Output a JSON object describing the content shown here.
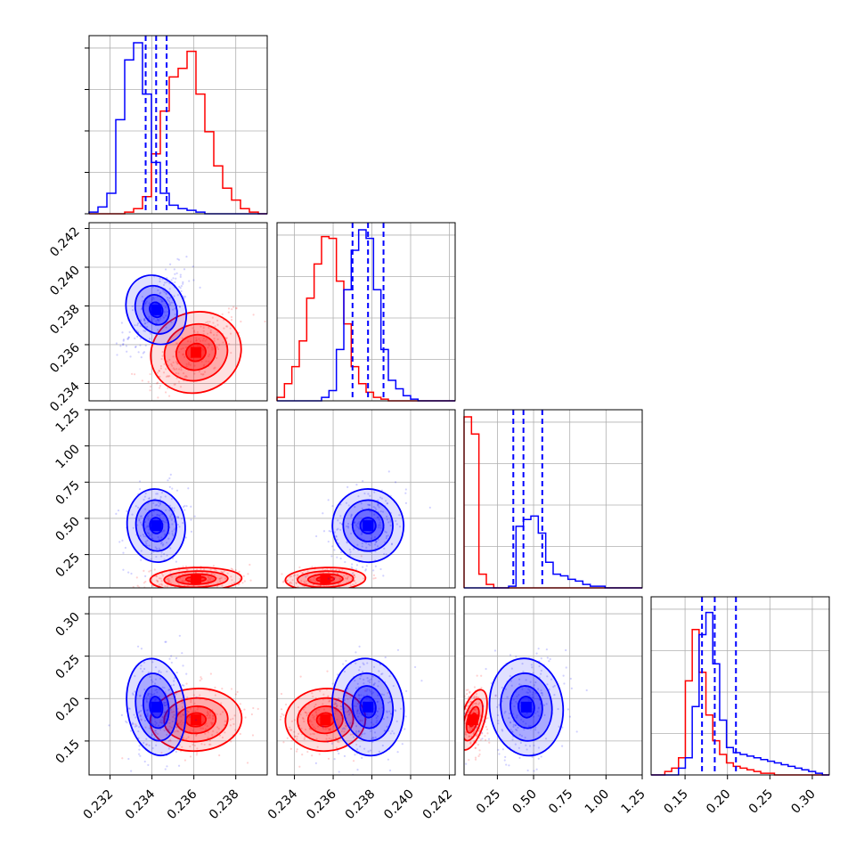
{
  "colors": {
    "red": "#ff0000",
    "blue": "#0000ff",
    "grid": "#b0b0b0"
  },
  "chart_data": {
    "type": "scatter",
    "layout": "corner-plot-4x4",
    "grid": true,
    "series": [
      {
        "color": "#ff0000",
        "mean": [
          0.2361,
          0.2356,
          0.08,
          0.175
        ],
        "std": [
          0.00095,
          0.0009,
          0.035,
          0.016
        ]
      },
      {
        "color": "#0000ff",
        "mean": [
          0.2342,
          0.2378,
          0.45,
          0.19
        ],
        "std": [
          0.0006,
          0.0008,
          0.11,
          0.025
        ]
      }
    ],
    "parameters": [
      {
        "range": [
          0.231,
          0.2395
        ],
        "ticks": [
          "0.232",
          "0.234",
          "0.236",
          "0.238"
        ],
        "tick_values": [
          0.232,
          0.234,
          0.236,
          0.238
        ]
      },
      {
        "range": [
          0.2331,
          0.2423
        ],
        "ticks": [
          "0.234",
          "0.236",
          "0.238",
          "0.240",
          "0.242"
        ],
        "tick_values": [
          0.234,
          0.236,
          0.238,
          0.24,
          0.242
        ]
      },
      {
        "range": [
          0.02,
          1.25
        ],
        "ticks": [
          "0.25",
          "0.50",
          "0.75",
          "1.00",
          "1.25"
        ],
        "tick_values": [
          0.25,
          0.5,
          0.75,
          1.0,
          1.25
        ]
      },
      {
        "range": [
          0.11,
          0.32
        ],
        "ticks": [
          "0.15",
          "0.20",
          "0.25",
          "0.30"
        ],
        "tick_values": [
          0.15,
          0.2,
          0.25,
          0.3
        ]
      }
    ],
    "blue_quantiles": [
      [
        0.2337,
        0.2342,
        0.2347
      ],
      [
        0.237,
        0.2378,
        0.2386
      ],
      [
        0.36,
        0.43,
        0.56
      ],
      [
        0.17,
        0.185,
        0.21
      ]
    ],
    "diag_hist": [
      {
        "bins": [
          0.231,
          0.2395,
          20
        ],
        "red": [
          0,
          0,
          0,
          0,
          0.01,
          0.03,
          0.1,
          0.35,
          0.6,
          0.8,
          0.85,
          0.95,
          0.7,
          0.48,
          0.28,
          0.15,
          0.08,
          0.03,
          0.01,
          0
        ],
        "blue": [
          0.01,
          0.04,
          0.12,
          0.55,
          0.9,
          1.0,
          0.7,
          0.3,
          0.12,
          0.05,
          0.03,
          0.02,
          0.01,
          0,
          0,
          0,
          0,
          0,
          0,
          0
        ]
      },
      {
        "bins": [
          0.2331,
          0.2423,
          24
        ],
        "red": [
          0.02,
          0.1,
          0.2,
          0.35,
          0.6,
          0.8,
          0.96,
          0.95,
          0.7,
          0.45,
          0.2,
          0.1,
          0.05,
          0.02,
          0.01,
          0,
          0,
          0,
          0,
          0,
          0,
          0,
          0,
          0
        ],
        "blue": [
          0,
          0,
          0,
          0,
          0,
          0,
          0.02,
          0.06,
          0.3,
          0.65,
          0.88,
          1.0,
          0.95,
          0.65,
          0.3,
          0.12,
          0.07,
          0.03,
          0.01,
          0,
          0,
          0,
          0,
          0
        ]
      },
      {
        "bins": [
          0.02,
          1.25,
          24
        ],
        "red": [
          1.0,
          0.9,
          0.08,
          0.02,
          0,
          0,
          0,
          0,
          0,
          0,
          0,
          0,
          0,
          0,
          0,
          0,
          0,
          0,
          0,
          0,
          0,
          0,
          0,
          0
        ],
        "blue": [
          0,
          0,
          0,
          0,
          0,
          0,
          0.01,
          0.36,
          0.4,
          0.42,
          0.32,
          0.15,
          0.08,
          0.07,
          0.05,
          0.04,
          0.02,
          0.01,
          0.01,
          0,
          0,
          0,
          0,
          0
        ]
      },
      {
        "bins": [
          0.11,
          0.32,
          26
        ],
        "red": [
          0,
          0,
          0.02,
          0.04,
          0.1,
          0.55,
          0.85,
          0.6,
          0.35,
          0.2,
          0.12,
          0.07,
          0.05,
          0.04,
          0.03,
          0.02,
          0.01,
          0.01,
          0,
          0,
          0,
          0,
          0,
          0,
          0,
          0
        ],
        "blue": [
          0,
          0,
          0,
          0,
          0.04,
          0.1,
          0.4,
          0.82,
          0.95,
          0.65,
          0.32,
          0.16,
          0.13,
          0.12,
          0.11,
          0.1,
          0.09,
          0.08,
          0.07,
          0.06,
          0.05,
          0.04,
          0.03,
          0.02,
          0.01,
          0
        ]
      }
    ]
  }
}
